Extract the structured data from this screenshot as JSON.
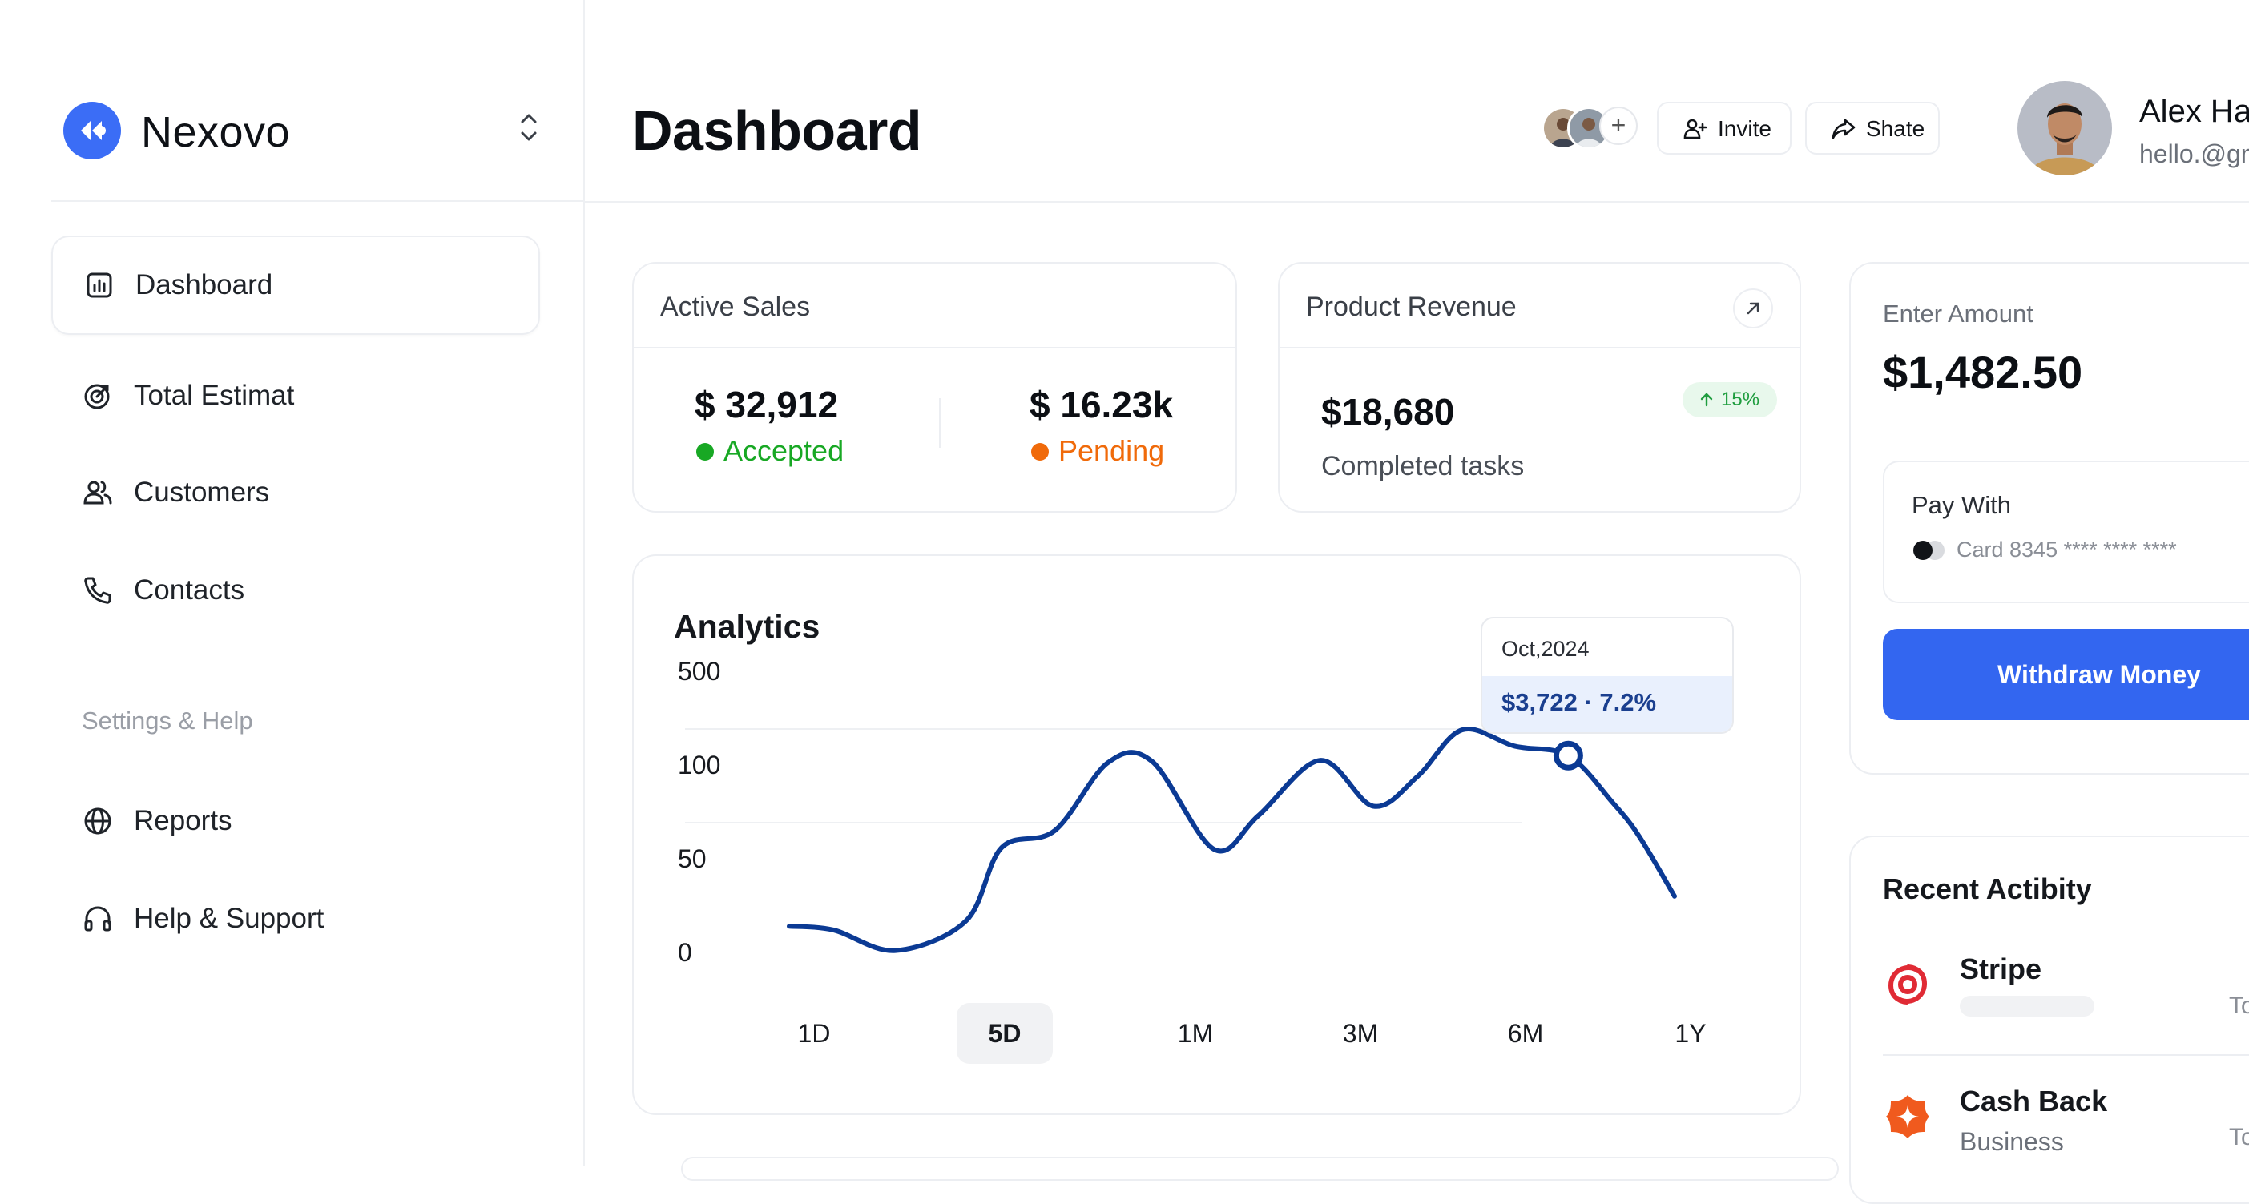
{
  "brand": {
    "name": "Nexovo",
    "accent": "#3b6df6"
  },
  "sidebar": {
    "items": [
      {
        "label": "Dashboard",
        "icon": "bar-chart-icon",
        "active": true
      },
      {
        "label": "Total Estimat",
        "icon": "target-icon"
      },
      {
        "label": "Customers",
        "icon": "users-icon"
      },
      {
        "label": "Contacts",
        "icon": "phone-icon"
      }
    ],
    "section_label": "Settings & Help",
    "settings_items": [
      {
        "label": "Reports",
        "icon": "globe-icon"
      },
      {
        "label": "Help & Support",
        "icon": "headphones-icon"
      }
    ]
  },
  "header": {
    "title": "Dashboard",
    "invite_label": "Invite",
    "share_label": "Shate",
    "plus": "+",
    "user": {
      "name": "Alex Ha",
      "email": "hello.@gm"
    }
  },
  "active_sales": {
    "title": "Active Sales",
    "accepted": {
      "value": "$ 32,912",
      "label": "Accepted",
      "color": "#18a824"
    },
    "pending": {
      "value": "$ 16.23k",
      "label": "Pending",
      "color": "#f06a0a"
    }
  },
  "product_revenue": {
    "title": "Product Revenue",
    "value": "$18,680",
    "badge": "15%",
    "caption": "Completed tasks"
  },
  "analytics": {
    "title": "Analytics",
    "tooltip": {
      "date": "Oct,2024",
      "value": "$3,722 · 7.2%"
    },
    "ranges": [
      "1D",
      "5D",
      "1M",
      "3M",
      "6M",
      "1Y"
    ],
    "active_range": "5D"
  },
  "chart_data": {
    "type": "line",
    "title": "Analytics",
    "y_ticks": [
      "500",
      "100",
      "50",
      "0"
    ],
    "x_ticks": [
      "1D",
      "5D",
      "1M",
      "3M",
      "6M",
      "1Y"
    ],
    "grid": true,
    "line_color": "#0b3a94",
    "series": [
      {
        "values": [
          {
            "x": 0.0,
            "y": 14
          },
          {
            "x": 0.05,
            "y": 12
          },
          {
            "x": 0.12,
            "y": 1
          },
          {
            "x": 0.2,
            "y": 17
          },
          {
            "x": 0.24,
            "y": 56
          },
          {
            "x": 0.3,
            "y": 65
          },
          {
            "x": 0.36,
            "y": 110
          },
          {
            "x": 0.41,
            "y": 115
          },
          {
            "x": 0.48,
            "y": 55
          },
          {
            "x": 0.53,
            "y": 73
          },
          {
            "x": 0.6,
            "y": 120
          },
          {
            "x": 0.66,
            "y": 78
          },
          {
            "x": 0.71,
            "y": 94
          },
          {
            "x": 0.76,
            "y": 250
          },
          {
            "x": 0.82,
            "y": 180
          },
          {
            "x": 0.88,
            "y": 140
          },
          {
            "x": 0.93,
            "y": 80
          },
          {
            "x": 0.96,
            "y": 62
          },
          {
            "x": 1.0,
            "y": 30
          }
        ]
      }
    ],
    "highlight": {
      "x": 0.88,
      "label": "$3,722 · 7.2%",
      "date": "Oct,2024"
    }
  },
  "withdraw": {
    "amount_label": "Enter Amount",
    "amount": "$1,482.50",
    "pay_with_label": "Pay With",
    "card_text": "Card 8345 **** **** ****",
    "button_label": "Withdraw Money",
    "button_color": "#3366f0"
  },
  "recent_activity": {
    "title": "Recent Actibity",
    "items": [
      {
        "name": "Stripe",
        "sub": "",
        "cut": "To",
        "icon": "stripe-logo-icon",
        "color": "#e02b35"
      },
      {
        "name": "Cash Back",
        "sub": "Business",
        "cut": "To",
        "icon": "cashback-icon",
        "color": "#f05a1e"
      }
    ]
  }
}
